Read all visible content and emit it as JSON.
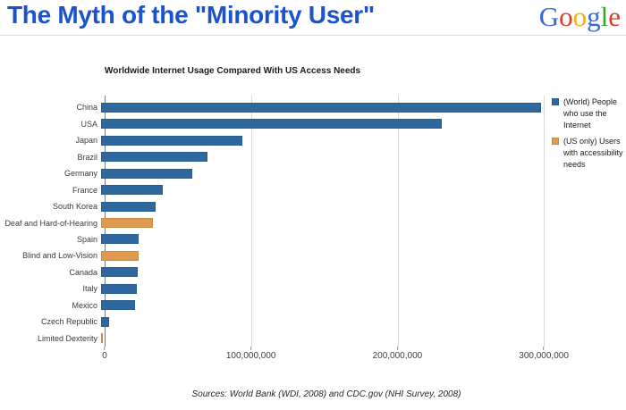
{
  "slide": {
    "title": "The Myth of the \"Minority User\"",
    "title_color": "#1B53CE"
  },
  "logo": {
    "name": "Google",
    "letters": [
      {
        "char": "G",
        "color": "#3A67DB"
      },
      {
        "char": "o",
        "color": "#D93F2A"
      },
      {
        "char": "o",
        "color": "#F0B110"
      },
      {
        "char": "g",
        "color": "#3A67DB"
      },
      {
        "char": "l",
        "color": "#36A32A"
      },
      {
        "char": "e",
        "color": "#D93F2A"
      }
    ]
  },
  "chart_data": {
    "type": "bar",
    "orientation": "horizontal",
    "title": "Worldwide Internet Usage Compared With US Access Needs",
    "xlabel": "",
    "ylabel": "",
    "xlim": [
      0,
      303000000
    ],
    "grid": "vertical-gridlines",
    "legend_position": "right",
    "x_ticks": [
      {
        "label": "0",
        "value": 0
      },
      {
        "label": "100,000,000",
        "value": 100000000
      },
      {
        "label": "200,000,000",
        "value": 200000000
      },
      {
        "label": "300,000,000",
        "value": 300000000
      }
    ],
    "series": [
      {
        "name": "(World) People who use the Internet",
        "color": "#2E689E"
      },
      {
        "name": "(US only) Users with accessibility needs",
        "color": "#DE9B50"
      }
    ],
    "bars": [
      {
        "category": "China",
        "value": 298000000,
        "series": 0
      },
      {
        "category": "USA",
        "value": 231000000,
        "series": 0
      },
      {
        "category": "Japan",
        "value": 96000000,
        "series": 0
      },
      {
        "category": "Brazil",
        "value": 72000000,
        "series": 0
      },
      {
        "category": "Germany",
        "value": 62000000,
        "series": 0
      },
      {
        "category": "France",
        "value": 42000000,
        "series": 0
      },
      {
        "category": "South Korea",
        "value": 37000000,
        "series": 0
      },
      {
        "category": "Deaf and Hard-of-Hearing",
        "value": 35000000,
        "series": 1
      },
      {
        "category": "Spain",
        "value": 25500000,
        "series": 0
      },
      {
        "category": "Blind and Low-Vision",
        "value": 25300000,
        "series": 1
      },
      {
        "category": "Canada",
        "value": 25000000,
        "series": 0
      },
      {
        "category": "Italy",
        "value": 24500000,
        "series": 0
      },
      {
        "category": "Mexico",
        "value": 23000000,
        "series": 0
      },
      {
        "category": "Czech Republic",
        "value": 5700000,
        "series": 0
      },
      {
        "category": "Limited Dexterity",
        "value": 1200000,
        "series": 1
      }
    ],
    "source_note": "Sources: World Bank (WDI, 2008) and CDC.gov (NHI Survey, 2008)"
  }
}
